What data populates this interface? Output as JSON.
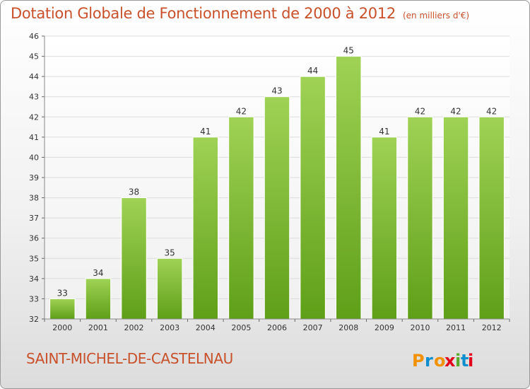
{
  "title": "Dotation Globale de Fonctionnement de 2000 à 2012",
  "unit": "(en milliers d'€)",
  "commune": "SAINT-MICHEL-DE-CASTELNAU",
  "logo": {
    "text": "Proxiti",
    "colors": [
      "#f39200",
      "#0d8ecf",
      "#f39200",
      "#e2001a",
      "#5aab2c",
      "#0d8ecf",
      "#e2001a"
    ]
  },
  "colors": {
    "accent": "#c8502a",
    "bar_top": "#9fd255",
    "bar_bottom": "#5f9f18"
  },
  "chart_data": {
    "type": "bar",
    "title": "Dotation Globale de Fonctionnement de 2000 à 2012",
    "subtitle": "(en milliers d'€)",
    "categories": [
      "2000",
      "2001",
      "2002",
      "2003",
      "2004",
      "2005",
      "2006",
      "2007",
      "2008",
      "2009",
      "2010",
      "2011",
      "2012"
    ],
    "values": [
      33,
      34,
      38,
      35,
      41,
      42,
      43,
      44,
      45,
      41,
      42,
      42,
      42
    ],
    "ylim": [
      32,
      46
    ],
    "yticks": [
      32,
      33,
      34,
      35,
      36,
      37,
      38,
      39,
      40,
      41,
      42,
      43,
      44,
      45,
      46
    ],
    "grid": true,
    "legend": "none"
  }
}
